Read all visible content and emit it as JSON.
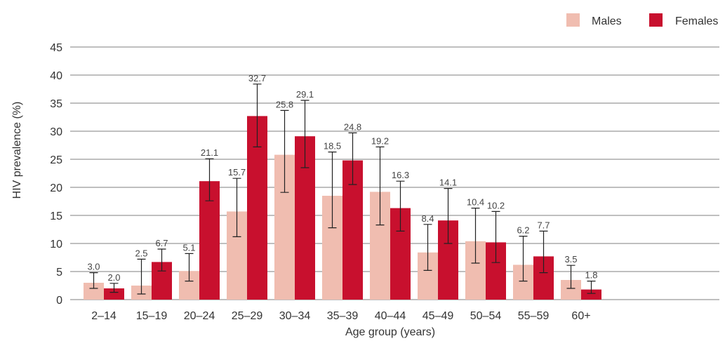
{
  "chart_data": {
    "type": "bar",
    "xlabel": "Age group (years)",
    "ylabel": "HIV prevalence (%)",
    "ylim": [
      0,
      45
    ],
    "yticks": [
      0,
      5,
      10,
      15,
      20,
      25,
      30,
      35,
      40,
      45
    ],
    "grid": true,
    "legend_position": "top-right",
    "categories": [
      "2–14",
      "15–19",
      "20–24",
      "25–29",
      "30–34",
      "35–39",
      "40–44",
      "45–49",
      "50–54",
      "55–59",
      "60+"
    ],
    "series": [
      {
        "name": "Males",
        "color": "#F0BDB0",
        "values": [
          3.0,
          2.5,
          5.1,
          15.7,
          25.8,
          18.5,
          19.2,
          8.4,
          10.4,
          6.2,
          3.5
        ],
        "value_labels": [
          "3.0",
          "2.5",
          "5.1",
          "15.7",
          "25.8",
          "18.5",
          "19.2",
          "8.4",
          "10.4",
          "6.2",
          "3.5"
        ],
        "ci_low": [
          2.0,
          1.0,
          3.3,
          11.2,
          19.1,
          12.8,
          13.3,
          5.2,
          6.5,
          3.3,
          2.0
        ],
        "ci_high": [
          4.8,
          7.2,
          8.2,
          21.6,
          33.7,
          26.3,
          27.2,
          13.4,
          16.3,
          11.3,
          6.1
        ]
      },
      {
        "name": "Females",
        "color": "#C8102E",
        "values": [
          2.0,
          6.7,
          21.1,
          32.7,
          29.1,
          24.8,
          16.3,
          14.1,
          10.2,
          7.7,
          1.8
        ],
        "value_labels": [
          "2.0",
          "6.7",
          "21.1",
          "32.7",
          "29.1",
          "24.8",
          "16.3",
          "14.1",
          "10.2",
          "7.7",
          "1.8"
        ],
        "ci_low": [
          1.3,
          5.1,
          17.6,
          27.2,
          23.5,
          20.5,
          12.2,
          10.0,
          6.6,
          4.8,
          1.1
        ],
        "ci_high": [
          2.9,
          9.0,
          25.1,
          38.4,
          35.5,
          29.7,
          21.1,
          19.8,
          15.7,
          12.2,
          3.3
        ]
      }
    ]
  }
}
